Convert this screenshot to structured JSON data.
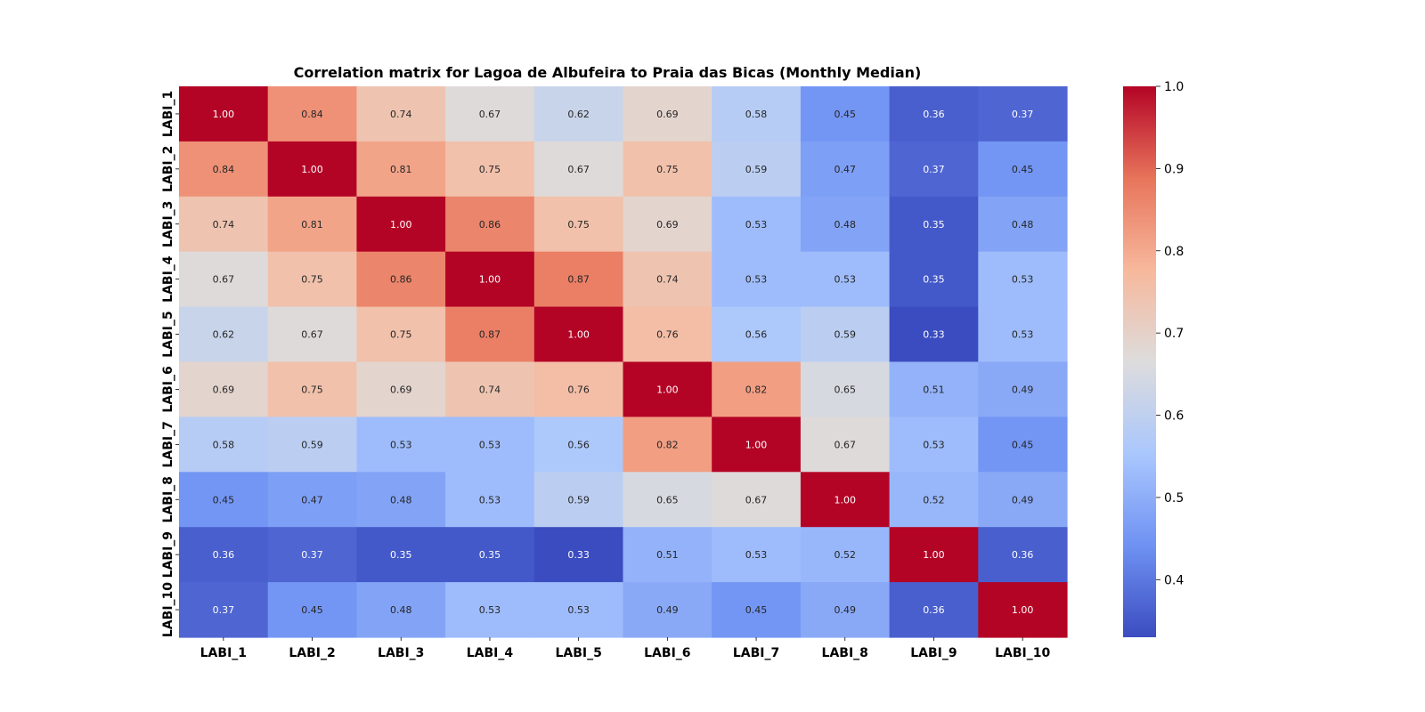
{
  "chart_data": {
    "type": "heatmap",
    "title": "Correlation matrix for Lagoa de Albufeira to Praia das Bicas (Monthly Median)",
    "xlabel": "",
    "ylabel": "",
    "x_categories": [
      "LABI_1",
      "LABI_2",
      "LABI_3",
      "LABI_4",
      "LABI_5",
      "LABI_6",
      "LABI_7",
      "LABI_8",
      "LABI_9",
      "LABI_10"
    ],
    "y_categories": [
      "LABI_1",
      "LABI_2",
      "LABI_3",
      "LABI_4",
      "LABI_5",
      "LABI_6",
      "LABI_7",
      "LABI_8",
      "LABI_9",
      "LABI_10"
    ],
    "values": [
      [
        1.0,
        0.84,
        0.74,
        0.67,
        0.62,
        0.69,
        0.58,
        0.45,
        0.36,
        0.37
      ],
      [
        0.84,
        1.0,
        0.81,
        0.75,
        0.67,
        0.75,
        0.59,
        0.47,
        0.37,
        0.45
      ],
      [
        0.74,
        0.81,
        1.0,
        0.86,
        0.75,
        0.69,
        0.53,
        0.48,
        0.35,
        0.48
      ],
      [
        0.67,
        0.75,
        0.86,
        1.0,
        0.87,
        0.74,
        0.53,
        0.53,
        0.35,
        0.53
      ],
      [
        0.62,
        0.67,
        0.75,
        0.87,
        1.0,
        0.76,
        0.56,
        0.59,
        0.33,
        0.53
      ],
      [
        0.69,
        0.75,
        0.69,
        0.74,
        0.76,
        1.0,
        0.82,
        0.65,
        0.51,
        0.49
      ],
      [
        0.58,
        0.59,
        0.53,
        0.53,
        0.56,
        0.82,
        1.0,
        0.67,
        0.53,
        0.45
      ],
      [
        0.45,
        0.47,
        0.48,
        0.53,
        0.59,
        0.65,
        0.67,
        1.0,
        0.52,
        0.49
      ],
      [
        0.36,
        0.37,
        0.35,
        0.35,
        0.33,
        0.51,
        0.53,
        0.52,
        1.0,
        0.36
      ],
      [
        0.37,
        0.45,
        0.48,
        0.53,
        0.53,
        0.49,
        0.45,
        0.49,
        0.36,
        1.0
      ]
    ],
    "annotation_format": "2 decimals",
    "colormap": "coolwarm",
    "colormap_colors": [
      "#3b4cc0",
      "#6f92f3",
      "#aac7fd",
      "#dddcdc",
      "#f7b89c",
      "#e7745b",
      "#b40426"
    ],
    "vmin": 0.33,
    "vmax": 1.0,
    "colorbar": {
      "position": "right",
      "ticks": [
        0.4,
        0.5,
        0.6,
        0.7,
        0.8,
        0.9,
        1.0
      ],
      "tick_labels": [
        "0.4",
        "0.5",
        "0.6",
        "0.7",
        "0.8",
        "0.9",
        "1.0"
      ]
    },
    "grid": false
  }
}
